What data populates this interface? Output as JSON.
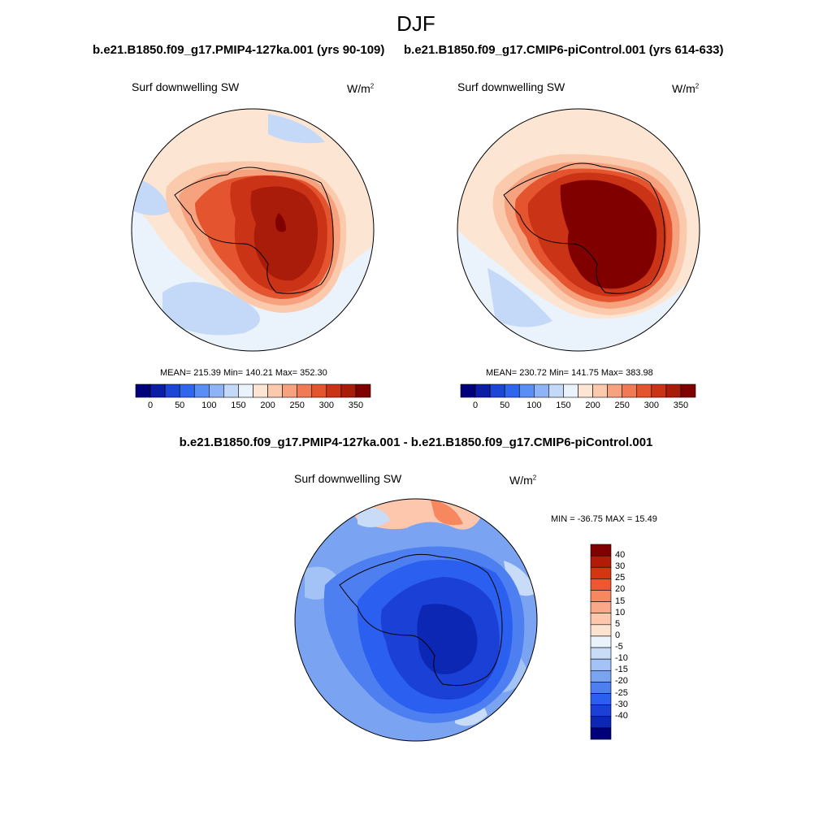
{
  "figure": {
    "season": "DJF",
    "panels": [
      {
        "case": "b.e21.B1850.f09_g17.PMIP4-127ka.001 (yrs 90-109)",
        "variable": "Surf downwelling SW",
        "units": "W/m",
        "units_exp": "2",
        "stats": "MEAN= 215.39  Min= 140.21  Max= 352.30"
      },
      {
        "case": "b.e21.B1850.f09_g17.CMIP6-piControl.001 (yrs 614-633)",
        "variable": "Surf downwelling SW",
        "units": "W/m",
        "units_exp": "2",
        "stats": "MEAN= 230.72  Min= 141.75  Max= 383.98"
      },
      {
        "case": "b.e21.B1850.f09_g17.PMIP4-127ka.001 - b.e21.B1850.f09_g17.CMIP6-piControl.001",
        "variable": "Surf downwelling SW",
        "units": "W/m",
        "units_exp": "2",
        "stats": "MIN = -36.75 MAX =  15.49"
      }
    ]
  },
  "colorbars": {
    "absolute": {
      "colors": [
        "#00007a",
        "#0a1ea8",
        "#1c46d6",
        "#2f66f0",
        "#5a8df5",
        "#8fb3f7",
        "#c4d9f8",
        "#eaf2fb",
        "#fde5d3",
        "#fbc9ac",
        "#f6a27f",
        "#f07a55",
        "#e4542f",
        "#cb3317",
        "#a91c0a",
        "#800000"
      ],
      "labels": [
        "0",
        "50",
        "100",
        "150",
        "200",
        "250",
        "300",
        "350"
      ]
    },
    "difference": {
      "colors": [
        "#800000",
        "#b01c07",
        "#d4360f",
        "#ee5730",
        "#f6875f",
        "#f9a98a",
        "#fcc7ad",
        "#fde2d0",
        "#eaf2fb",
        "#c8dcf8",
        "#a3c2f5",
        "#7aa3f2",
        "#4d7ff0",
        "#2b5ff0",
        "#1a40d6",
        "#0b27b3",
        "#00007a"
      ],
      "labels": [
        "40",
        "30",
        "25",
        "20",
        "15",
        "10",
        "5",
        "0",
        "-5",
        "-10",
        "-15",
        "-20",
        "-25",
        "-30",
        "-40"
      ]
    }
  },
  "chart_data": [
    {
      "type": "heatmap",
      "title": "Surf downwelling SW",
      "subtitle": "b.e21.B1850.f09_g17.PMIP4-127ka.001 (yrs 90-109)",
      "units": "W/m^2",
      "projection": "south polar stereographic",
      "scale": [
        0,
        50,
        100,
        150,
        200,
        250,
        300,
        350
      ],
      "mean": 215.39,
      "min": 140.21,
      "max": 352.3
    },
    {
      "type": "heatmap",
      "title": "Surf downwelling SW",
      "subtitle": "b.e21.B1850.f09_g17.CMIP6-piControl.001 (yrs 614-633)",
      "units": "W/m^2",
      "projection": "south polar stereographic",
      "scale": [
        0,
        50,
        100,
        150,
        200,
        250,
        300,
        350
      ],
      "mean": 230.72,
      "min": 141.75,
      "max": 383.98
    },
    {
      "type": "heatmap",
      "title": "Surf downwelling SW",
      "subtitle": "b.e21.B1850.f09_g17.PMIP4-127ka.001 - b.e21.B1850.f09_g17.CMIP6-piControl.001",
      "units": "W/m^2",
      "projection": "south polar stereographic",
      "scale": [
        -40,
        -30,
        -25,
        -20,
        -15,
        -10,
        -5,
        0,
        5,
        10,
        15,
        20,
        25,
        30,
        40
      ],
      "min": -36.75,
      "max": 15.49
    }
  ]
}
